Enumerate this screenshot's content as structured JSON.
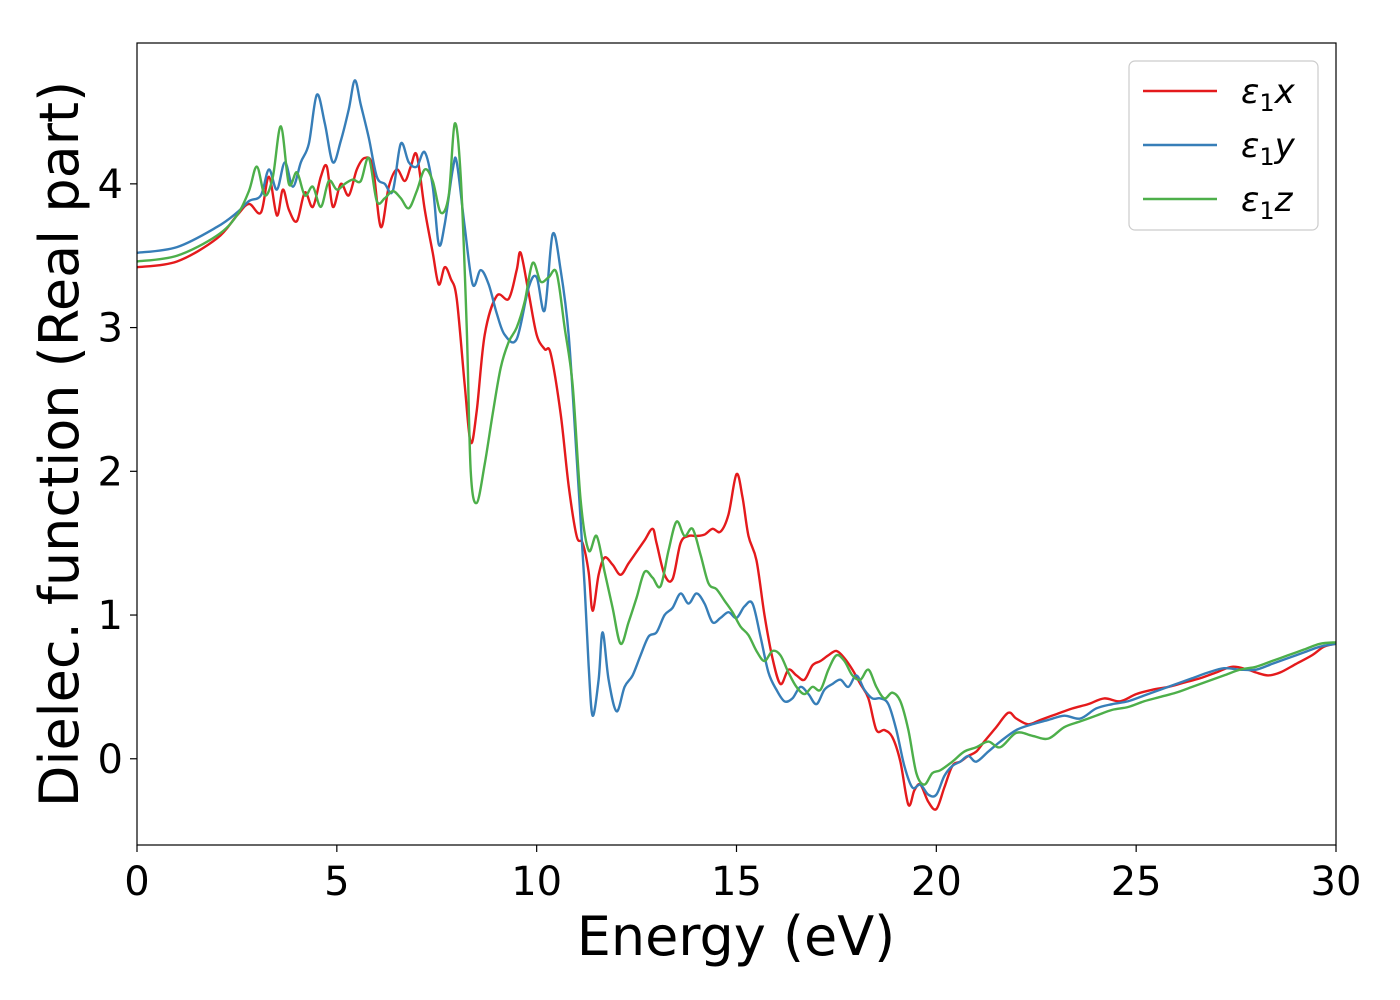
{
  "chart_data": {
    "type": "line",
    "xlabel": "Energy (eV)",
    "ylabel": "Dielec. function (Real part)",
    "xlim": [
      0,
      30
    ],
    "ylim": [
      -0.6,
      4.98
    ],
    "xticks": [
      0,
      5,
      10,
      15,
      20,
      25,
      30
    ],
    "yticks": [
      0,
      1,
      2,
      3,
      4
    ],
    "grid": false,
    "legend_position": "top-right",
    "series": [
      {
        "name": "ε1x",
        "legend_main": "ε",
        "legend_sub": "1",
        "legend_var": "x",
        "color": "#e41a1c",
        "x": [
          0,
          1,
          2,
          2.5,
          2.8,
          3.1,
          3.3,
          3.5,
          3.65,
          3.8,
          4.0,
          4.2,
          4.4,
          4.6,
          4.75,
          4.9,
          5.1,
          5.3,
          5.5,
          5.7,
          5.9,
          6.1,
          6.3,
          6.5,
          6.7,
          6.85,
          7.0,
          7.2,
          7.4,
          7.55,
          7.7,
          7.85,
          8.0,
          8.2,
          8.35,
          8.5,
          8.7,
          9.0,
          9.3,
          9.5,
          9.6,
          9.8,
          10.0,
          10.2,
          10.35,
          10.6,
          10.8,
          11.0,
          11.15,
          11.3,
          11.4,
          11.55,
          11.7,
          11.9,
          12.1,
          12.3,
          12.5,
          12.7,
          12.9,
          13.0,
          13.2,
          13.4,
          13.6,
          13.8,
          14.0,
          14.2,
          14.4,
          14.6,
          14.8,
          15.0,
          15.15,
          15.3,
          15.5,
          15.7,
          15.9,
          16.1,
          16.3,
          16.5,
          16.7,
          16.9,
          17.1,
          17.3,
          17.5,
          17.7,
          17.9,
          18.1,
          18.3,
          18.5,
          18.7,
          18.9,
          19.1,
          19.3,
          19.45,
          19.6,
          19.8,
          20.0,
          20.2,
          20.4,
          20.6,
          20.8,
          21.0,
          21.2,
          21.5,
          21.8,
          22.0,
          22.3,
          22.6,
          23.0,
          23.4,
          23.8,
          24.2,
          24.6,
          25.0,
          25.4,
          25.8,
          26.2,
          26.6,
          27.0,
          27.4,
          27.8,
          28.0,
          28.3,
          28.6,
          29.0,
          29.4,
          29.7,
          30.0
        ],
        "y": [
          3.42,
          3.46,
          3.62,
          3.78,
          3.86,
          3.8,
          4.05,
          3.78,
          3.96,
          3.82,
          3.74,
          3.94,
          3.84,
          4.05,
          4.12,
          3.84,
          4.0,
          3.92,
          4.1,
          4.18,
          4.12,
          3.7,
          3.98,
          4.1,
          4.02,
          4.12,
          4.2,
          3.82,
          3.52,
          3.3,
          3.42,
          3.34,
          3.2,
          2.6,
          2.2,
          2.42,
          2.95,
          3.22,
          3.2,
          3.4,
          3.52,
          3.24,
          2.95,
          2.85,
          2.82,
          2.4,
          1.9,
          1.55,
          1.5,
          1.3,
          1.03,
          1.28,
          1.4,
          1.35,
          1.28,
          1.36,
          1.44,
          1.52,
          1.6,
          1.5,
          1.28,
          1.25,
          1.5,
          1.55,
          1.55,
          1.56,
          1.6,
          1.58,
          1.7,
          1.98,
          1.82,
          1.55,
          1.38,
          1.0,
          0.7,
          0.52,
          0.62,
          0.58,
          0.55,
          0.65,
          0.68,
          0.72,
          0.75,
          0.7,
          0.62,
          0.52,
          0.42,
          0.2,
          0.2,
          0.15,
          -0.02,
          -0.32,
          -0.22,
          -0.18,
          -0.3,
          -0.35,
          -0.2,
          -0.05,
          -0.02,
          0.02,
          0.05,
          0.12,
          0.22,
          0.32,
          0.28,
          0.24,
          0.27,
          0.31,
          0.35,
          0.38,
          0.42,
          0.4,
          0.45,
          0.48,
          0.5,
          0.53,
          0.56,
          0.6,
          0.64,
          0.62,
          0.6,
          0.58,
          0.6,
          0.66,
          0.72,
          0.78,
          0.8
        ],
        "dip_note": ""
      },
      {
        "name": "ε1y",
        "legend_main": "ε",
        "legend_sub": "1",
        "legend_var": "y",
        "color": "#377eb8",
        "x": [
          0,
          1,
          2,
          2.5,
          2.8,
          3.1,
          3.3,
          3.5,
          3.7,
          3.9,
          4.1,
          4.3,
          4.5,
          4.7,
          4.9,
          5.1,
          5.3,
          5.45,
          5.6,
          5.8,
          6.0,
          6.2,
          6.4,
          6.6,
          6.8,
          7.0,
          7.2,
          7.4,
          7.55,
          7.7,
          7.9,
          8.0,
          8.2,
          8.4,
          8.6,
          8.8,
          9.0,
          9.2,
          9.5,
          9.8,
          10.0,
          10.2,
          10.4,
          10.6,
          10.8,
          11.0,
          11.2,
          11.3,
          11.4,
          11.55,
          11.65,
          11.8,
          12.0,
          12.2,
          12.4,
          12.6,
          12.8,
          13.0,
          13.2,
          13.4,
          13.6,
          13.8,
          14.0,
          14.2,
          14.4,
          14.6,
          14.8,
          15.0,
          15.2,
          15.4,
          15.6,
          15.8,
          16.0,
          16.2,
          16.4,
          16.6,
          16.8,
          17.0,
          17.2,
          17.4,
          17.6,
          17.8,
          18.0,
          18.2,
          18.4,
          18.6,
          18.8,
          19.0,
          19.2,
          19.4,
          19.6,
          19.8,
          20.0,
          20.2,
          20.4,
          20.6,
          20.8,
          21.0,
          21.3,
          21.6,
          22.0,
          22.4,
          22.8,
          23.2,
          23.6,
          24.0,
          24.4,
          24.8,
          25.2,
          25.6,
          26.0,
          26.4,
          26.8,
          27.2,
          27.6,
          28.0,
          28.4,
          28.8,
          29.2,
          29.6,
          30.0
        ],
        "y": [
          3.52,
          3.56,
          3.7,
          3.8,
          3.88,
          3.92,
          4.1,
          3.96,
          4.15,
          3.98,
          4.15,
          4.28,
          4.62,
          4.42,
          4.15,
          4.3,
          4.52,
          4.72,
          4.55,
          4.32,
          4.05,
          4.0,
          3.95,
          4.28,
          4.15,
          4.12,
          4.22,
          3.98,
          3.58,
          3.72,
          4.1,
          4.15,
          3.7,
          3.3,
          3.4,
          3.3,
          3.1,
          2.95,
          2.92,
          3.28,
          3.35,
          3.12,
          3.65,
          3.4,
          2.95,
          2.1,
          1.2,
          0.65,
          0.3,
          0.55,
          0.88,
          0.55,
          0.33,
          0.5,
          0.58,
          0.72,
          0.85,
          0.88,
          1.0,
          1.05,
          1.15,
          1.08,
          1.15,
          1.08,
          0.95,
          0.98,
          1.02,
          0.98,
          1.06,
          1.08,
          0.85,
          0.6,
          0.48,
          0.4,
          0.42,
          0.5,
          0.45,
          0.38,
          0.48,
          0.52,
          0.55,
          0.5,
          0.58,
          0.48,
          0.42,
          0.42,
          0.38,
          0.2,
          -0.05,
          -0.2,
          -0.18,
          -0.25,
          -0.25,
          -0.12,
          -0.05,
          -0.02,
          0.02,
          -0.02,
          0.05,
          0.12,
          0.2,
          0.24,
          0.27,
          0.3,
          0.28,
          0.35,
          0.38,
          0.4,
          0.44,
          0.48,
          0.52,
          0.56,
          0.6,
          0.63,
          0.62,
          0.62,
          0.66,
          0.7,
          0.74,
          0.78,
          0.8
        ]
      },
      {
        "name": "ε1z",
        "legend_main": "ε",
        "legend_sub": "1",
        "legend_var": "z",
        "color": "#4daf4a",
        "x": [
          0,
          1,
          2,
          2.5,
          2.8,
          3.0,
          3.2,
          3.4,
          3.6,
          3.8,
          4.0,
          4.2,
          4.4,
          4.6,
          4.8,
          5.0,
          5.2,
          5.4,
          5.6,
          5.8,
          6.0,
          6.2,
          6.4,
          6.6,
          6.8,
          7.0,
          7.2,
          7.4,
          7.6,
          7.8,
          7.95,
          8.1,
          8.25,
          8.35,
          8.5,
          8.7,
          8.9,
          9.1,
          9.3,
          9.5,
          9.7,
          9.9,
          10.1,
          10.3,
          10.5,
          10.7,
          10.9,
          11.1,
          11.3,
          11.5,
          11.7,
          11.9,
          12.1,
          12.3,
          12.5,
          12.7,
          12.9,
          13.1,
          13.3,
          13.5,
          13.7,
          13.9,
          14.1,
          14.3,
          14.5,
          14.7,
          14.9,
          15.1,
          15.3,
          15.5,
          15.7,
          15.9,
          16.1,
          16.3,
          16.5,
          16.7,
          16.9,
          17.1,
          17.3,
          17.5,
          17.7,
          17.9,
          18.1,
          18.3,
          18.5,
          18.7,
          18.9,
          19.1,
          19.3,
          19.5,
          19.7,
          19.9,
          20.1,
          20.4,
          20.7,
          21.0,
          21.3,
          21.6,
          22.0,
          22.4,
          22.8,
          23.2,
          23.6,
          24.0,
          24.4,
          24.8,
          25.2,
          25.6,
          26.0,
          26.4,
          26.8,
          27.2,
          27.6,
          28.0,
          28.4,
          28.8,
          29.2,
          29.6,
          30.0
        ],
        "y": [
          3.46,
          3.5,
          3.64,
          3.78,
          3.95,
          4.12,
          3.92,
          4.05,
          4.4,
          4.0,
          4.08,
          3.92,
          3.98,
          3.84,
          4.02,
          3.96,
          4.0,
          4.03,
          4.02,
          4.18,
          3.88,
          3.9,
          3.95,
          3.9,
          3.83,
          3.95,
          4.1,
          4.02,
          3.8,
          3.92,
          4.42,
          4.05,
          3.0,
          2.0,
          1.78,
          2.05,
          2.4,
          2.72,
          2.9,
          3.0,
          3.18,
          3.45,
          3.32,
          3.35,
          3.38,
          3.0,
          2.6,
          1.8,
          1.45,
          1.55,
          1.3,
          1.05,
          0.8,
          0.95,
          1.12,
          1.3,
          1.26,
          1.2,
          1.45,
          1.65,
          1.55,
          1.6,
          1.42,
          1.22,
          1.18,
          1.1,
          1.02,
          0.92,
          0.86,
          0.75,
          0.68,
          0.75,
          0.72,
          0.6,
          0.5,
          0.45,
          0.5,
          0.48,
          0.62,
          0.72,
          0.68,
          0.58,
          0.55,
          0.62,
          0.5,
          0.42,
          0.46,
          0.4,
          0.2,
          -0.1,
          -0.18,
          -0.1,
          -0.08,
          -0.02,
          0.05,
          0.08,
          0.12,
          0.08,
          0.18,
          0.16,
          0.14,
          0.22,
          0.26,
          0.3,
          0.34,
          0.36,
          0.4,
          0.43,
          0.46,
          0.5,
          0.54,
          0.58,
          0.62,
          0.64,
          0.68,
          0.72,
          0.76,
          0.8,
          0.81
        ]
      }
    ]
  }
}
